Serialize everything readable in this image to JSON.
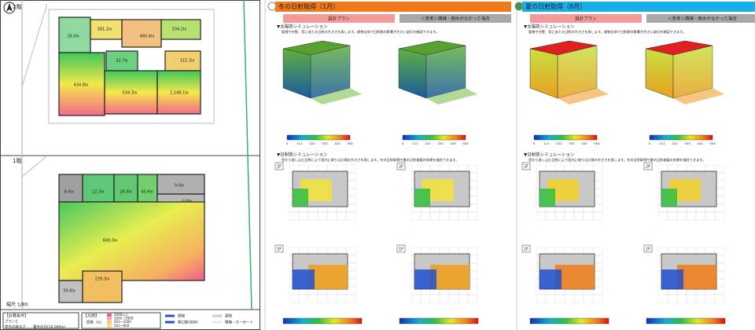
{
  "left": {
    "floors": [
      {
        "label": "2階",
        "rooms": [
          "18.0lx",
          "381.1lx",
          "460.4lx",
          "104.2lx",
          "32.7lx",
          "315.2lx",
          "434.8lx",
          "534.3lx",
          "1,188.1lx"
        ]
      },
      {
        "label": "1階",
        "rooms": [
          "8.6lx",
          "12.3lx",
          "28.0lx",
          "45.6lx",
          "0.0lx",
          "0.0lx",
          "669.3lx",
          "39.6lx",
          "239.3lx"
        ]
      }
    ],
    "scale": "縮尺 1/80",
    "conditions": {
      "title": "【計算条件】",
      "plan": "プラン1",
      "outside": "室外の明るさ",
      "sky": "曇天の日(10,000lx)"
    },
    "legend": {
      "title": "【凡例】",
      "unit": "照度（lx）",
      "levels": [
        "2000以上",
        "1001～2000",
        "601～1000",
        "501～600"
      ],
      "items": [
        "壁線",
        "開口部(窓枠)",
        "建物",
        "隣棟・カーポート"
      ]
    }
  },
  "panels": [
    {
      "title": "冬の日射取得（1月）",
      "columns": [
        "設計プラン",
        "＜参考＞隣棟・樹木がなかった場合"
      ],
      "sections": [
        {
          "heading": "▼太陽熱シミュレーション",
          "desc": "屋根や外壁、窓にあたる日射の大きさを表します。建物全体で日射熱の影響が大きい部位を確認できます。"
        },
        {
          "heading": "▼日射熱シミュレーション",
          "desc": "窓から差し込む日射により室内に取り込む熱の大きさを表します。冬の日射取得や夏の日射遮蔽の効果を検討できます。"
        }
      ],
      "floors": [
        "2F",
        "1F"
      ],
      "ticks": [
        "0",
        "111",
        "222",
        "333",
        "443",
        "554"
      ]
    },
    {
      "title": "夏の日射取得（8月）",
      "columns": [
        "設計プラン",
        "＜参考＞隣棟・樹木がなかった場合"
      ],
      "sections": [
        {
          "heading": "▼太陽熱シミュレーション",
          "desc": "屋根や外壁、窓にあたる日射の大きさを表します。建物全体で日射熱の影響が大きい部位を確認できます。"
        },
        {
          "heading": "▼日射熱シミュレーション",
          "desc": "窓から差し込む日射により室内に取り込む熱の大きさを表します。冬の日射取得や夏の日射遮蔽の効果を検討できます。"
        }
      ],
      "floors": [
        "2F",
        "1F"
      ],
      "ticks": [
        "0",
        "111",
        "222",
        "333",
        "443",
        "554"
      ]
    }
  ]
}
